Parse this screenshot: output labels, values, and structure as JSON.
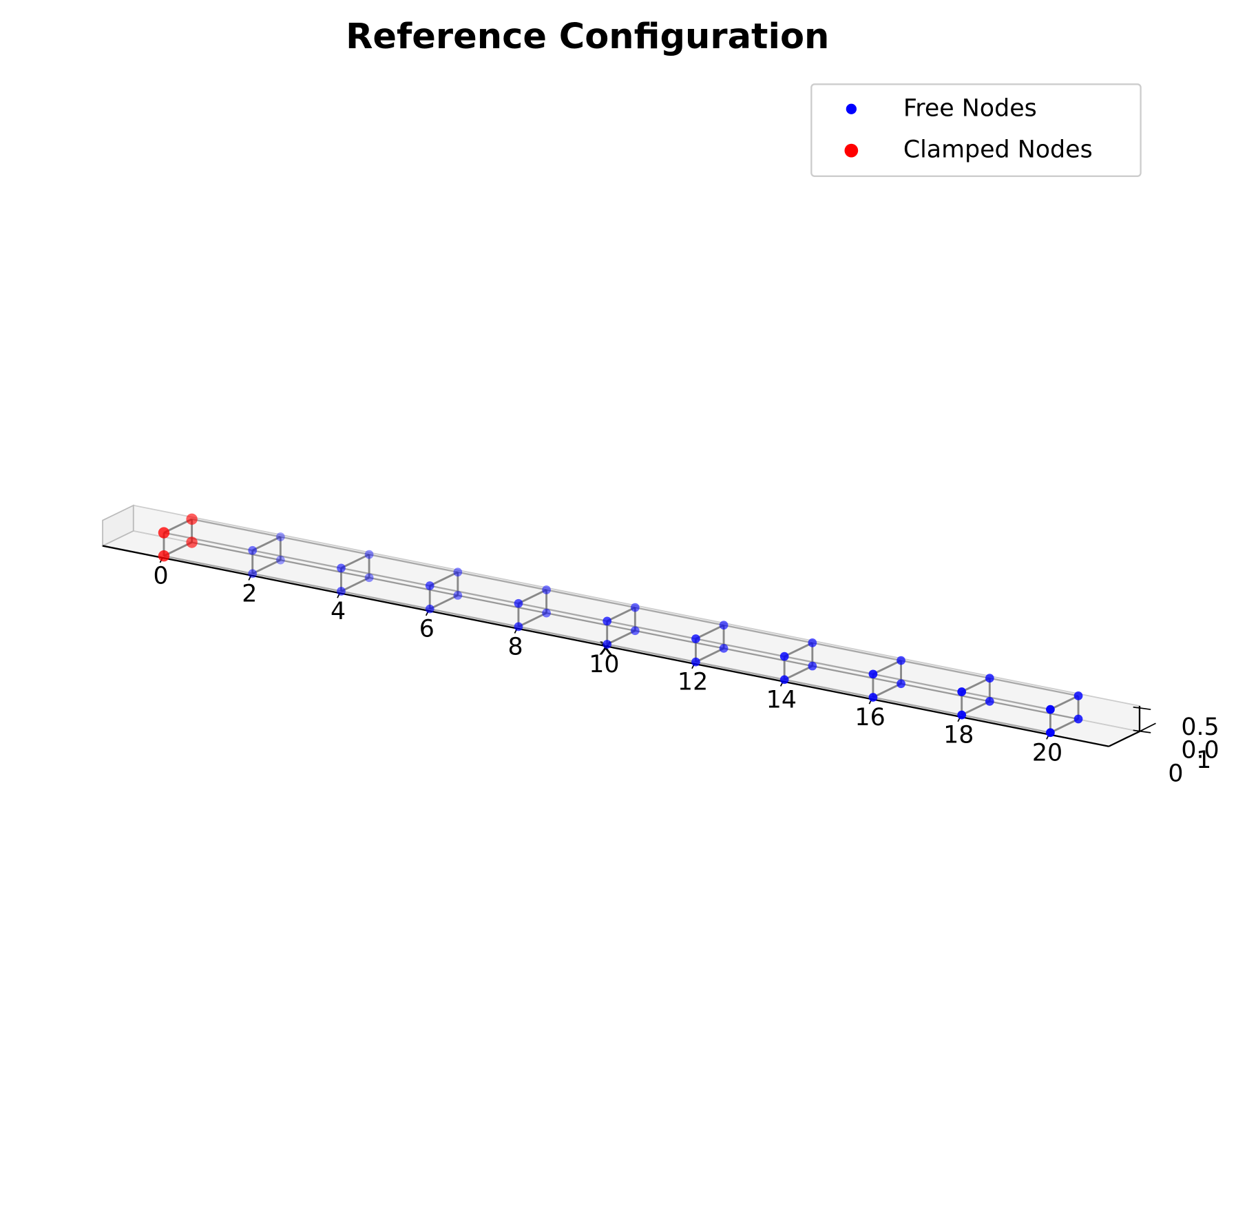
{
  "chart_data": {
    "type": "scatter3d",
    "title": "Reference Configuration",
    "x_label": "x",
    "series": [
      {
        "name": "Free Nodes",
        "color": "blue",
        "size": 30,
        "x": [
          2,
          2,
          2,
          2,
          4,
          4,
          4,
          4,
          6,
          6,
          6,
          6,
          8,
          8,
          8,
          8,
          10,
          10,
          10,
          10,
          12,
          12,
          12,
          12,
          14,
          14,
          14,
          14,
          16,
          16,
          16,
          16,
          18,
          18,
          18,
          18,
          20,
          20,
          20,
          20
        ],
        "y": [
          0,
          1,
          0,
          1,
          0,
          1,
          0,
          1,
          0,
          1,
          0,
          1,
          0,
          1,
          0,
          1,
          0,
          1,
          0,
          1,
          0,
          1,
          0,
          1,
          0,
          1,
          0,
          1,
          0,
          1,
          0,
          1,
          0,
          1,
          0,
          1,
          0,
          1,
          0,
          1
        ],
        "z": [
          0,
          0,
          0.5,
          0.5,
          0,
          0,
          0.5,
          0.5,
          0,
          0,
          0.5,
          0.5,
          0,
          0,
          0.5,
          0.5,
          0,
          0,
          0.5,
          0.5,
          0,
          0,
          0.5,
          0.5,
          0,
          0,
          0.5,
          0.5,
          0,
          0,
          0.5,
          0.5,
          0,
          0,
          0.5,
          0.5,
          0,
          0,
          0.5,
          0.5
        ]
      },
      {
        "name": "Clamped Nodes",
        "color": "red",
        "size": 50,
        "x": [
          0,
          0,
          0,
          0
        ],
        "y": [
          0,
          1,
          0,
          1
        ],
        "z": [
          0,
          0,
          0.5,
          0.5
        ]
      }
    ],
    "xlim": [
      -1.35,
      21.35
    ],
    "ylim": [
      -0.05,
      1.05
    ],
    "zlim": [
      -0.025,
      0.525
    ],
    "xticks": [
      0,
      2,
      4,
      6,
      8,
      10,
      12,
      14,
      16,
      18,
      20
    ],
    "yticks": [
      0,
      1
    ],
    "zticks": [
      {
        "value": 0,
        "label": "0.0"
      },
      {
        "value": 0.5,
        "label": "0.5"
      }
    ],
    "legend": "upper right"
  }
}
